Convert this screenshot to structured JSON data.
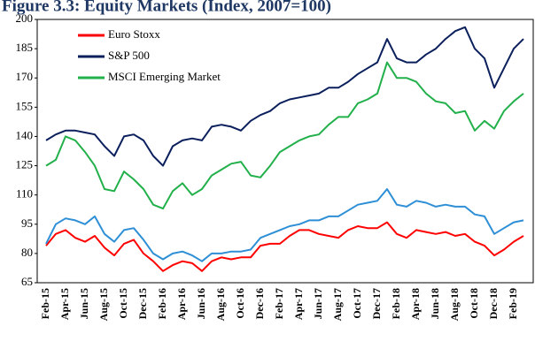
{
  "chart_data": {
    "type": "line",
    "title": "Figure 3.3: Equity Markets (Index, 2007=100)",
    "categories": [
      "Feb-15",
      null,
      "Apr-15",
      null,
      "Jun-15",
      null,
      "Aug-15",
      null,
      "Oct-15",
      null,
      "Dec-15",
      null,
      "Feb-16",
      null,
      "Apr-16",
      null,
      "Jun-16",
      null,
      "Aug-16",
      null,
      "Oct-16",
      null,
      "Dec-16",
      null,
      "Feb-17",
      null,
      "Apr-17",
      null,
      "Jun-17",
      null,
      "Aug-17",
      null,
      "Oct-17",
      null,
      "Dec-17",
      null,
      "Feb-18",
      null,
      "Apr-18",
      null,
      "Jun-18",
      null,
      "Aug-18",
      null,
      "Oct-18",
      null,
      "Dec-18",
      null,
      "Feb-19",
      null
    ],
    "series": [
      {
        "name": "Euro Stoxx",
        "color": "#ff0000",
        "values": [
          84,
          90,
          92,
          88,
          86,
          89,
          83,
          79,
          85,
          87,
          80,
          76,
          71,
          74,
          76,
          75,
          71,
          76,
          78,
          77,
          78,
          78,
          84,
          85,
          85,
          89,
          92,
          92,
          90,
          89,
          88,
          92,
          94,
          93,
          93,
          96,
          90,
          88,
          92,
          91,
          90,
          91,
          89,
          90,
          86,
          84,
          79,
          82,
          86,
          89
        ]
      },
      {
        "name": "S&P 500",
        "color": "#0a1f5c",
        "values": [
          138,
          141,
          143,
          143,
          142,
          141,
          135,
          130,
          140,
          141,
          138,
          130,
          125,
          135,
          138,
          139,
          138,
          145,
          146,
          145,
          143,
          148,
          151,
          153,
          157,
          159,
          160,
          161,
          162,
          165,
          165,
          168,
          172,
          175,
          178,
          190,
          180,
          178,
          178,
          182,
          185,
          190,
          194,
          196,
          185,
          180,
          165,
          175,
          185,
          190
        ]
      },
      {
        "name": "MSCI Emerging Market",
        "color": "#22b04b",
        "values": [
          125,
          128,
          140,
          138,
          132,
          125,
          113,
          112,
          122,
          118,
          113,
          105,
          103,
          112,
          116,
          110,
          113,
          120,
          123,
          126,
          127,
          120,
          119,
          125,
          132,
          135,
          138,
          140,
          141,
          146,
          150,
          150,
          157,
          159,
          162,
          178,
          170,
          170,
          168,
          162,
          158,
          157,
          152,
          153,
          143,
          148,
          144,
          153,
          158,
          162
        ]
      },
      {
        "color": "#2e8fd6",
        "values": [
          85,
          95,
          98,
          97,
          95,
          99,
          90,
          86,
          92,
          93,
          87,
          80,
          77,
          80,
          81,
          79,
          76,
          80,
          80,
          81,
          81,
          82,
          88,
          90,
          92,
          94,
          95,
          97,
          97,
          99,
          99,
          102,
          105,
          106,
          107,
          113,
          105,
          104,
          107,
          106,
          104,
          105,
          104,
          104,
          100,
          99,
          90,
          93,
          96,
          97
        ]
      }
    ],
    "ylim": [
      65,
      200
    ],
    "yticks": [
      65,
      80,
      95,
      110,
      125,
      140,
      155,
      170,
      185,
      200
    ],
    "grid": false,
    "legend": "upper left"
  }
}
